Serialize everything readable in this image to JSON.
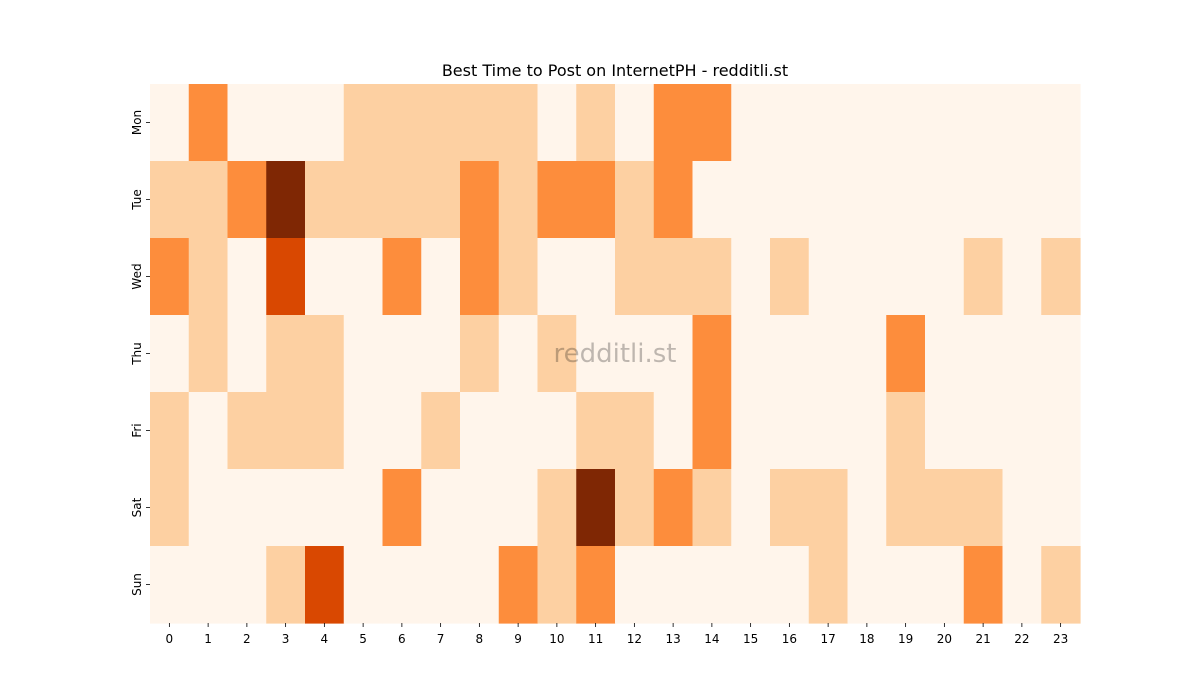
{
  "chart_data": {
    "type": "heatmap",
    "title": "Best Time to Post on InternetPH - redditli.st",
    "watermark": "redditli.st",
    "xlabel": "",
    "ylabel": "",
    "x_categories": [
      "0",
      "1",
      "2",
      "3",
      "4",
      "5",
      "6",
      "7",
      "8",
      "9",
      "10",
      "11",
      "12",
      "13",
      "14",
      "15",
      "16",
      "17",
      "18",
      "19",
      "20",
      "21",
      "22",
      "23"
    ],
    "y_categories": [
      "Mon",
      "Tue",
      "Wed",
      "Thu",
      "Fri",
      "Sat",
      "Sun"
    ],
    "values": [
      [
        0,
        2,
        0,
        0,
        0,
        1,
        1,
        1,
        1,
        1,
        0,
        1,
        0,
        2,
        2,
        0,
        0,
        0,
        0,
        0,
        0,
        0,
        0,
        0
      ],
      [
        1,
        1,
        2,
        4,
        1,
        1,
        1,
        1,
        2,
        1,
        2,
        2,
        1,
        2,
        0,
        0,
        0,
        0,
        0,
        0,
        0,
        0,
        0,
        0
      ],
      [
        2,
        1,
        0,
        3,
        0,
        0,
        2,
        0,
        2,
        1,
        0,
        0,
        1,
        1,
        1,
        0,
        1,
        0,
        0,
        0,
        0,
        1,
        0,
        1
      ],
      [
        0,
        1,
        0,
        1,
        1,
        0,
        0,
        0,
        1,
        0,
        1,
        0,
        0,
        0,
        2,
        0,
        0,
        0,
        0,
        2,
        0,
        0,
        0,
        0
      ],
      [
        1,
        0,
        1,
        1,
        1,
        0,
        0,
        1,
        0,
        0,
        0,
        1,
        1,
        0,
        2,
        0,
        0,
        0,
        0,
        1,
        0,
        0,
        0,
        0
      ],
      [
        1,
        0,
        0,
        0,
        0,
        0,
        2,
        0,
        0,
        0,
        1,
        4,
        1,
        2,
        1,
        0,
        1,
        1,
        0,
        1,
        1,
        1,
        0,
        0
      ],
      [
        0,
        0,
        0,
        1,
        3,
        0,
        0,
        0,
        0,
        2,
        1,
        2,
        0,
        0,
        0,
        0,
        0,
        1,
        0,
        0,
        0,
        2,
        0,
        1
      ]
    ],
    "colormap": [
      "#fff5eb",
      "#fdd0a2",
      "#fd8d3c",
      "#d94801",
      "#7f2704"
    ],
    "colorbar": false
  }
}
